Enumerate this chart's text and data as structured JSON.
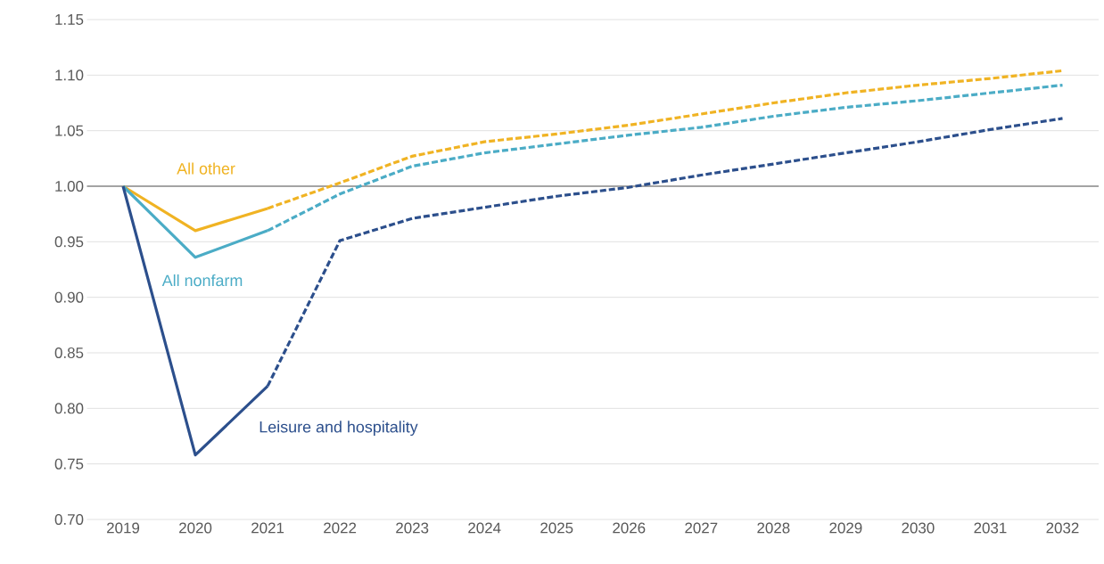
{
  "chart_data": {
    "type": "line",
    "categories": [
      "2019",
      "2020",
      "2021",
      "2022",
      "2023",
      "2024",
      "2025",
      "2026",
      "2027",
      "2028",
      "2029",
      "2030",
      "2031",
      "2032"
    ],
    "series": [
      {
        "name": "All other",
        "color": "#f0b323",
        "line_style": "solid",
        "values": [
          1.0,
          0.96,
          0.98,
          null,
          null,
          null,
          null,
          null,
          null,
          null,
          null,
          null,
          null,
          null
        ]
      },
      {
        "name": "All nonfarm",
        "color": "#4bacc6",
        "line_style": "solid",
        "values": [
          1.0,
          0.936,
          0.96,
          null,
          null,
          null,
          null,
          null,
          null,
          null,
          null,
          null,
          null,
          null
        ]
      },
      {
        "name": "Leisure and hospitality",
        "color": "#2c4f8c",
        "line_style": "solid",
        "values": [
          1.0,
          0.758,
          0.82,
          null,
          null,
          null,
          null,
          null,
          null,
          null,
          null,
          null,
          null,
          null
        ]
      },
      {
        "color": "#f0b323",
        "line_style": "dashed",
        "values": [
          null,
          null,
          0.98,
          1.003,
          1.027,
          1.04,
          1.047,
          1.055,
          1.065,
          1.075,
          1.084,
          1.091,
          1.097,
          1.104
        ]
      },
      {
        "color": "#4bacc6",
        "line_style": "dashed",
        "values": [
          null,
          null,
          0.96,
          0.993,
          1.018,
          1.03,
          1.038,
          1.046,
          1.053,
          1.063,
          1.071,
          1.077,
          1.084,
          1.091
        ]
      },
      {
        "color": "#2c4f8c",
        "line_style": "dashed",
        "values": [
          null,
          null,
          0.82,
          0.951,
          0.971,
          0.981,
          0.991,
          0.999,
          1.01,
          1.02,
          1.03,
          1.04,
          1.051,
          1.061
        ]
      }
    ],
    "ylim": [
      0.7,
      1.15
    ],
    "yticks": [
      {
        "value": 0.7,
        "label": "0.70"
      },
      {
        "value": 0.75,
        "label": "0.75"
      },
      {
        "value": 0.8,
        "label": "0.80"
      },
      {
        "value": 0.85,
        "label": "0.85"
      },
      {
        "value": 0.9,
        "label": "0.90"
      },
      {
        "value": 0.95,
        "label": "0.95"
      },
      {
        "value": 1.0,
        "label": "1.00"
      },
      {
        "value": 1.05,
        "label": "1.05"
      },
      {
        "value": 1.1,
        "label": "1.10"
      },
      {
        "value": 1.15,
        "label": "1.15"
      }
    ],
    "grid": "y",
    "marker": "none",
    "ref_lines": [
      {
        "axis": "y",
        "value": 1.0,
        "color": "#595959"
      }
    ]
  }
}
